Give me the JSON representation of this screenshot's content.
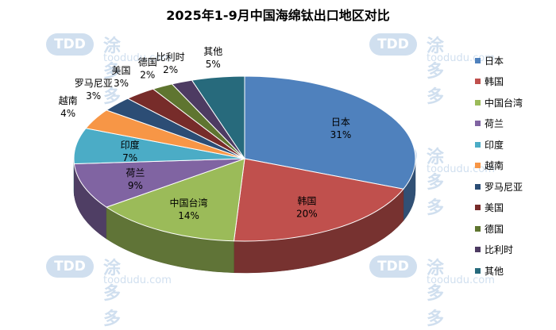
{
  "watermark": {
    "badge": "TDD",
    "cn": "涂多多",
    "en": "toodudu.com"
  },
  "chart_data": {
    "type": "pie",
    "title": "2025年1-9月中国海绵钛出口地区对比",
    "categories": [
      "日本",
      "韩国",
      "中国台湾",
      "荷兰",
      "印度",
      "越南",
      "罗马尼亚",
      "美国",
      "德国",
      "比利时",
      "其他"
    ],
    "values": [
      31,
      20,
      14,
      9,
      7,
      4,
      3,
      3,
      2,
      2,
      5
    ],
    "value_labels": [
      "31%",
      "20%",
      "14%",
      "9%",
      "7%",
      "4%",
      "3%",
      "3%",
      "2%",
      "2%",
      "5%"
    ],
    "colors": [
      "#4f81bd",
      "#c0504d",
      "#9bbb59",
      "#8064a2",
      "#4bacc6",
      "#f79646",
      "#2c4d75",
      "#772c2a",
      "#5f7530",
      "#4d3b62",
      "#276a7c"
    ],
    "legend_position": "right",
    "style": "3d"
  }
}
